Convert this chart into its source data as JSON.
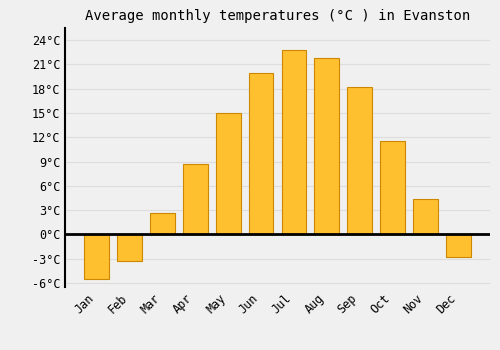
{
  "title": "Average monthly temperatures (°C ) in Evanston",
  "months": [
    "Jan",
    "Feb",
    "Mar",
    "Apr",
    "May",
    "Jun",
    "Jul",
    "Aug",
    "Sep",
    "Oct",
    "Nov",
    "Dec"
  ],
  "values": [
    -5.5,
    -3.3,
    2.7,
    8.7,
    15.0,
    20.0,
    22.8,
    21.8,
    18.2,
    11.5,
    4.4,
    -2.8
  ],
  "bar_color": "#FFC030",
  "bar_edge_color": "#CC8800",
  "background_color": "#F0F0F0",
  "grid_color": "#DDDDDD",
  "zero_line_color": "#000000",
  "left_spine_color": "#000000",
  "ylim": [
    -6.5,
    25.5
  ],
  "yticks": [
    -6,
    -3,
    0,
    3,
    6,
    9,
    12,
    15,
    18,
    21,
    24
  ],
  "title_fontsize": 10,
  "tick_fontsize": 8.5
}
